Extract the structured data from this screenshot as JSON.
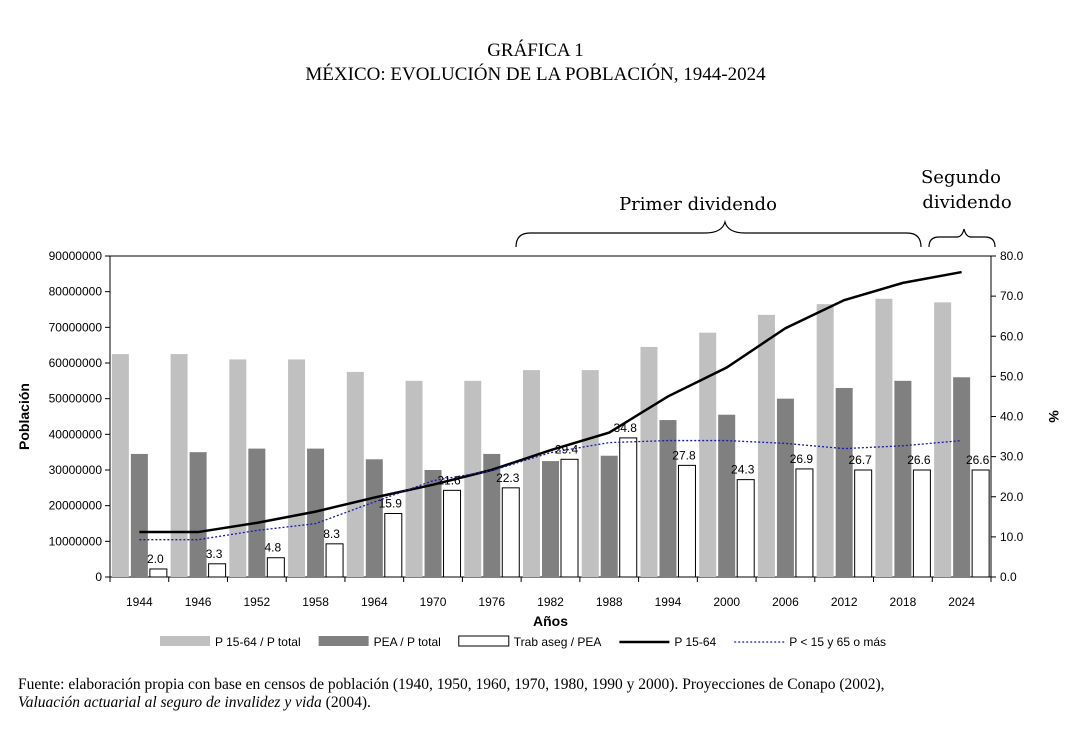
{
  "title": {
    "line1": "GRÁFICA 1",
    "line2": "MÉXICO: EVOLUCIÓN DE LA POBLACIÓN, 1944-2024"
  },
  "annotations": {
    "primer": "Primer dividendo",
    "segundo_line1": "Segundo",
    "segundo_line2": "dividendo"
  },
  "chart_data": {
    "type": "bar",
    "xlabel": "Años",
    "ylabel": "Población",
    "y2label": "%",
    "ylim": [
      0,
      90000000
    ],
    "y2lim": [
      0,
      80
    ],
    "yticks": [
      "0",
      "10000000",
      "20000000",
      "30000000",
      "40000000",
      "50000000",
      "60000000",
      "70000000",
      "80000000",
      "90000000"
    ],
    "y2ticks": [
      "0.0",
      "10.0",
      "20.0",
      "30.0",
      "40.0",
      "50.0",
      "60.0",
      "70.0",
      "80.0"
    ],
    "categories": [
      "1944",
      "1946",
      "1952",
      "1958",
      "1964",
      "1970",
      "1976",
      "1982",
      "1988",
      "1994",
      "2000",
      "2006",
      "2012",
      "2018",
      "2024"
    ],
    "series": [
      {
        "name": "P 15-64 / P total",
        "kind": "bar",
        "color": "#c0c0c0",
        "values": [
          62500000,
          62500000,
          61000000,
          61000000,
          57500000,
          55000000,
          55000000,
          58000000,
          58000000,
          64500000,
          68500000,
          73500000,
          76500000,
          78000000,
          77000000
        ]
      },
      {
        "name": "PEA / P total",
        "kind": "bar",
        "color": "#808080",
        "values": [
          34500000,
          35000000,
          36000000,
          36000000,
          33000000,
          30000000,
          34500000,
          32500000,
          34000000,
          44000000,
          45500000,
          50000000,
          53000000,
          55000000,
          56000000
        ]
      },
      {
        "name": "Trab aseg / PEA",
        "kind": "bar",
        "color": "#ffffff",
        "values": [
          2250000,
          3700000,
          5400000,
          9300000,
          17800000,
          24300000,
          25000000,
          33000000,
          39000000,
          31300000,
          27300000,
          30300000,
          30000000,
          30000000,
          30000000
        ],
        "labels": [
          "2.0",
          "3.3",
          "4.8",
          "8.3",
          "15.9",
          "21.6",
          "22.3",
          "29.4",
          "34.8",
          "27.8",
          "24.3",
          "26.9",
          "26.7",
          "26.6",
          "26.6"
        ]
      },
      {
        "name": "P 15-64",
        "kind": "line",
        "axis": "y2",
        "color": "#000000",
        "values": [
          11.2,
          11.2,
          13.5,
          16.3,
          19.8,
          23.0,
          26.7,
          31.6,
          36.0,
          45.0,
          52.2,
          62.0,
          69.0,
          73.3,
          76.0
        ]
      },
      {
        "name": "P < 15 y 65 o más",
        "kind": "line",
        "axis": "y2",
        "color": "#1a1aa6",
        "values": [
          9.3,
          9.3,
          11.6,
          13.3,
          18.7,
          24.0,
          26.5,
          31.0,
          33.5,
          34.0,
          34.0,
          33.3,
          32.0,
          32.7,
          34.0
        ]
      }
    ]
  },
  "source": {
    "text1": "Fuente: elaboración propia con base en censos de población (1940, 1950, 1960, 1970, 1980, 1990 y 2000). Proyecciones de Conapo (2002),",
    "italic": "Valuación actuarial al seguro de invalidez y vida",
    "text2": " (2004)."
  }
}
